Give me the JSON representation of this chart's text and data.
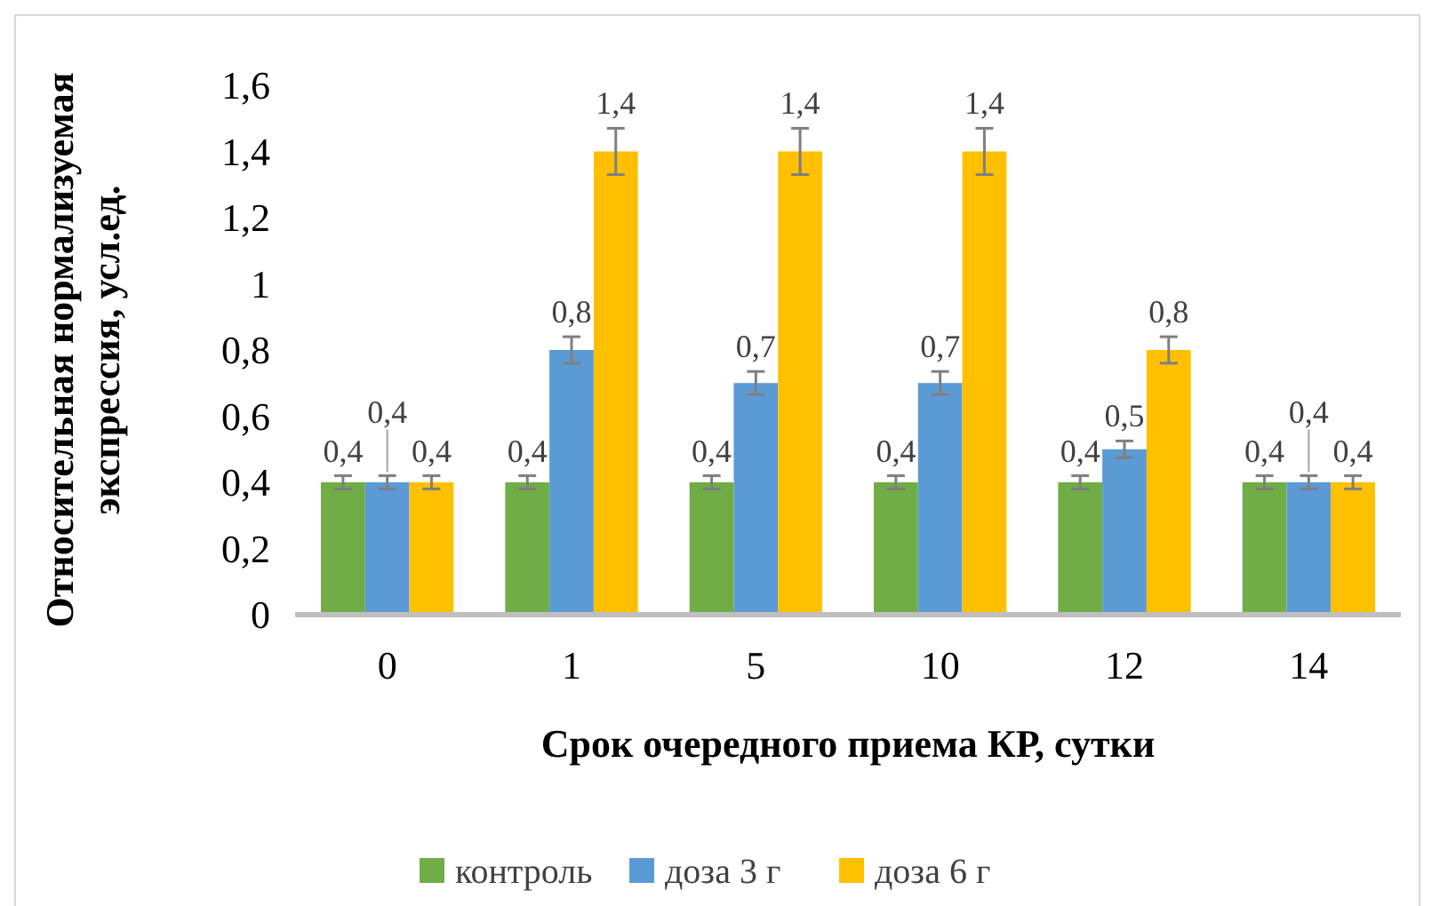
{
  "chart_data": {
    "type": "bar",
    "xlabel": "Срок очередного приема КР, сутки",
    "ylabel": "Относительная нормализуемая экспрессия, усл.ед.",
    "categories": [
      "0",
      "1",
      "5",
      "10",
      "12",
      "14"
    ],
    "series": [
      {
        "name": "контроль",
        "color": "#70ad47",
        "values": [
          0.4,
          0.4,
          0.4,
          0.4,
          0.4,
          0.4
        ],
        "errors": [
          0.02,
          0.02,
          0.02,
          0.02,
          0.02,
          0.02
        ],
        "value_labels": [
          "0,4",
          "0,4",
          "0,4",
          "0,4",
          "0,4",
          "0,4"
        ]
      },
      {
        "name": "доза 3 г",
        "color": "#5b9bd5",
        "values": [
          0.4,
          0.8,
          0.7,
          0.7,
          0.5,
          0.4
        ],
        "errors": [
          0.02,
          0.04,
          0.035,
          0.035,
          0.025,
          0.02
        ],
        "value_labels": [
          "0,4",
          "0,8",
          "0,7",
          "0,7",
          "0,5",
          "0,4"
        ]
      },
      {
        "name": "доза 6 г",
        "color": "#ffc000",
        "values": [
          0.4,
          1.4,
          1.4,
          1.4,
          0.8,
          0.4
        ],
        "errors": [
          0.02,
          0.07,
          0.07,
          0.07,
          0.04,
          0.02
        ],
        "value_labels": [
          "0,4",
          "1,4",
          "1,4",
          "1,4",
          "0,8",
          "0,4"
        ]
      }
    ],
    "ylim": [
      0,
      1.6
    ],
    "yticks": [
      0,
      {
        "value": 0.2,
        "label": "0,2"
      },
      {
        "value": 0.4,
        "label": "0,4"
      },
      {
        "value": 0.6,
        "label": "0,6"
      },
      {
        "value": 0.8,
        "label": "0,8"
      },
      1,
      {
        "value": 1.2,
        "label": "1,2"
      },
      {
        "value": 1.4,
        "label": "1,4"
      },
      {
        "value": 1.6,
        "label": "1,6"
      }
    ],
    "grid": false,
    "legend": "bottom"
  }
}
